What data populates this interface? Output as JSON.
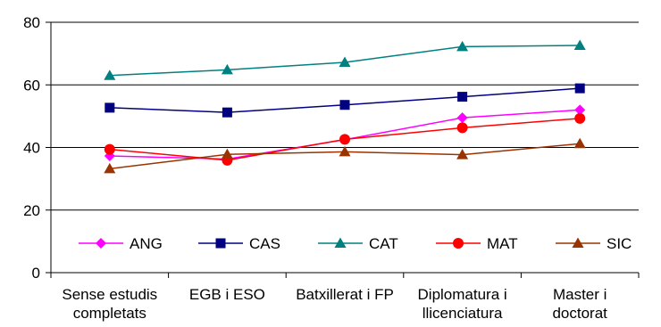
{
  "chart_data": {
    "type": "line",
    "categories": [
      [
        "Sense estudis",
        "completats"
      ],
      [
        "EGB i ESO"
      ],
      [
        "Batxillerat i FP"
      ],
      [
        "Diplomatura i",
        "llicenciatura"
      ],
      [
        "Master i",
        "doctorat"
      ]
    ],
    "ylim": [
      0,
      80
    ],
    "yticks": [
      0,
      20,
      40,
      60,
      80
    ],
    "grid": true,
    "legend_position": "inside-bottom",
    "series": [
      {
        "name": "ANG",
        "color": "#FF00FF",
        "marker": "diamond",
        "values": [
          37.3,
          36.3,
          42.5,
          49.5,
          52.0
        ]
      },
      {
        "name": "CAS",
        "color": "#000080",
        "marker": "square",
        "values": [
          52.7,
          51.2,
          53.6,
          56.2,
          58.9
        ]
      },
      {
        "name": "CAT",
        "color": "#008080",
        "marker": "triangle",
        "values": [
          63.0,
          64.8,
          67.2,
          72.2,
          72.6
        ]
      },
      {
        "name": "MAT",
        "color": "#FF0000",
        "marker": "circle",
        "values": [
          39.4,
          35.9,
          42.6,
          46.3,
          49.3
        ]
      },
      {
        "name": "SIC",
        "color": "#993300",
        "marker": "triangle",
        "values": [
          33.2,
          37.8,
          38.6,
          37.7,
          41.2
        ]
      }
    ]
  }
}
